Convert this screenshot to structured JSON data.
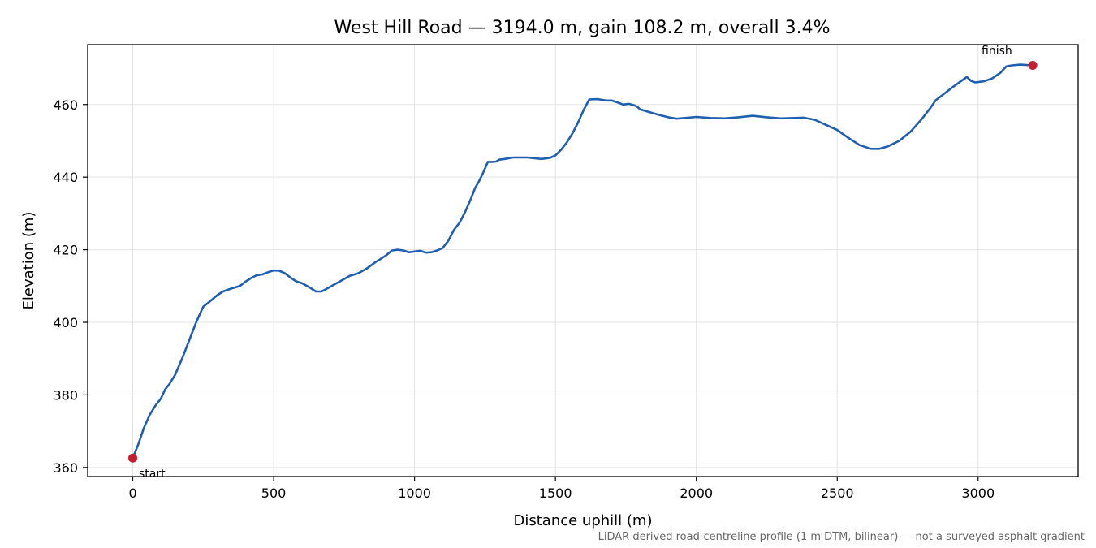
{
  "chart_data": {
    "type": "line",
    "title": "West Hill Road — 3194.0 m, gain 108.2 m, overall 3.4%",
    "xlabel": "Distance uphill (m)",
    "ylabel": "Elevation (m)",
    "xlim": [
      -160,
      3355
    ],
    "ylim": [
      357.5,
      476.5
    ],
    "xticks": [
      0,
      500,
      1000,
      1500,
      2000,
      2500,
      3000
    ],
    "yticks": [
      360,
      380,
      400,
      420,
      440,
      460
    ],
    "grid": true,
    "line_color": "#1f5fb0",
    "marker_color": "#c41e2e",
    "series": [
      {
        "x": [
          0,
          20,
          40,
          60,
          80,
          100,
          115,
          130,
          150,
          175,
          200,
          225,
          250,
          270,
          285,
          300,
          320,
          350,
          380,
          400,
          420,
          440,
          460,
          480,
          500,
          520,
          540,
          560,
          580,
          600,
          630,
          650,
          670,
          690,
          710,
          740,
          770,
          800,
          830,
          860,
          880,
          900,
          920,
          940,
          960,
          980,
          1000,
          1020,
          1040,
          1060,
          1080,
          1100,
          1120,
          1140,
          1160,
          1180,
          1200,
          1215,
          1230,
          1245,
          1260,
          1275,
          1290,
          1300,
          1320,
          1350,
          1400,
          1450,
          1480,
          1500,
          1520,
          1540,
          1560,
          1580,
          1600,
          1620,
          1650,
          1680,
          1700,
          1720,
          1740,
          1760,
          1780,
          1790,
          1800,
          1830,
          1870,
          1900,
          1930,
          1960,
          2000,
          2050,
          2100,
          2150,
          2200,
          2250,
          2300,
          2350,
          2380,
          2420,
          2460,
          2500,
          2540,
          2580,
          2620,
          2650,
          2680,
          2720,
          2760,
          2800,
          2830,
          2850,
          2880,
          2910,
          2940,
          2960,
          2975,
          2990,
          3020,
          3050,
          3080,
          3100,
          3120,
          3150,
          3194
        ],
        "y": [
          362.6,
          366.5,
          371,
          374.5,
          377,
          379,
          381.5,
          383,
          385.5,
          390,
          395,
          400,
          404.3,
          405.5,
          406.5,
          407.5,
          408.5,
          409.3,
          410,
          411.2,
          412.2,
          413,
          413.2,
          413.8,
          414.3,
          414.2,
          413.5,
          412.3,
          411.3,
          410.8,
          409.5,
          408.5,
          408.5,
          409.3,
          410.2,
          411.5,
          412.8,
          413.5,
          414.8,
          416.5,
          417.5,
          418.5,
          419.8,
          420,
          419.8,
          419.3,
          419.5,
          419.7,
          419.2,
          419.3,
          419.8,
          420.5,
          422.5,
          425.5,
          427.5,
          430.5,
          434,
          437,
          439,
          441.5,
          444.2,
          444.2,
          444.3,
          444.8,
          445,
          445.4,
          445.4,
          445,
          445.3,
          446,
          447.5,
          449.5,
          452,
          455,
          458.5,
          461.4,
          461.5,
          461.1,
          461.1,
          460.6,
          460,
          460.2,
          459.8,
          459.4,
          458.7,
          458,
          457.1,
          456.5,
          456.1,
          456.3,
          456.6,
          456.3,
          456.2,
          456.5,
          456.9,
          456.5,
          456.2,
          456.3,
          456.4,
          455.8,
          454.4,
          453,
          450.8,
          448.8,
          447.8,
          447.8,
          448.5,
          450,
          452.5,
          456,
          459,
          461.2,
          463,
          464.8,
          466.5,
          467.6,
          466.5,
          466.1,
          466.4,
          467.2,
          468.8,
          470.5,
          470.8,
          471,
          470.8
        ]
      }
    ],
    "annotations": {
      "start": {
        "label": "start",
        "x": 0,
        "y": 362.6
      },
      "finish": {
        "label": "finish",
        "x": 3194,
        "y": 470.8
      }
    },
    "footnote": "LiDAR-derived road-centreline profile (1 m DTM, bilinear) — not a surveyed asphalt gradient"
  }
}
